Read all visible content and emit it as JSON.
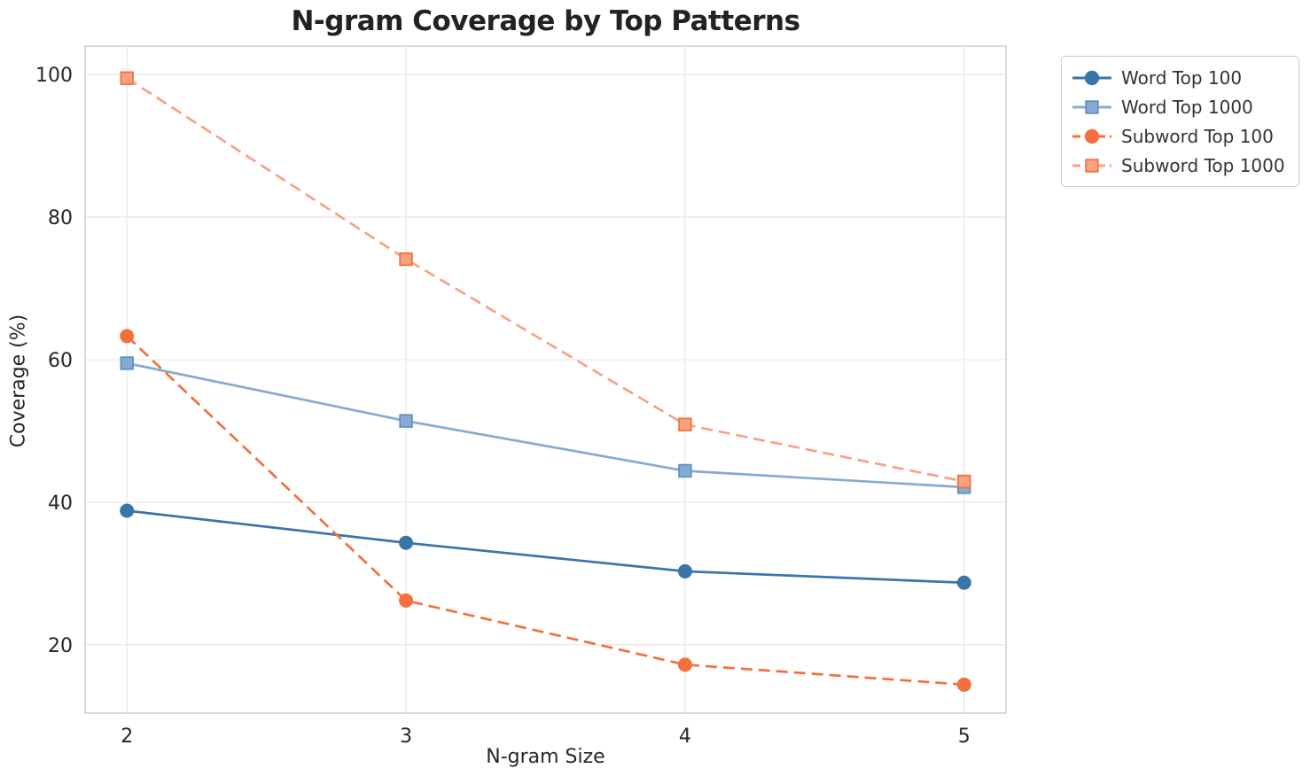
{
  "title": "N-gram Coverage by Top Patterns",
  "chart_data": {
    "type": "line",
    "title": "N-gram Coverage by Top Patterns",
    "xlabel": "N-gram Size",
    "ylabel": "Coverage (%)",
    "x": [
      2,
      3,
      4,
      5
    ],
    "xticks": [
      2,
      3,
      4,
      5
    ],
    "yticks": [
      20,
      40,
      60,
      80,
      100
    ],
    "xlim": [
      1.85,
      5.15
    ],
    "ylim": [
      10.4,
      104.0
    ],
    "grid": true,
    "legend_position": "outside-top-right",
    "series": [
      {
        "name": "Word Top 100",
        "values": [
          38.8,
          34.3,
          30.3,
          28.7
        ],
        "color": "#3A75A9",
        "edge": "#3A75A9",
        "marker": "circle",
        "dash": "solid"
      },
      {
        "name": "Word Top 1000",
        "values": [
          59.5,
          51.4,
          44.4,
          42.1
        ],
        "color": "#85ABD2",
        "edge": "#5E91C2",
        "marker": "square",
        "dash": "solid"
      },
      {
        "name": "Subword Top 100",
        "values": [
          63.3,
          26.2,
          17.2,
          14.4
        ],
        "color": "#F56F3D",
        "edge": "#F56F3D",
        "marker": "circle",
        "dash": "dashed"
      },
      {
        "name": "Subword Top 1000",
        "values": [
          99.5,
          74.1,
          50.9,
          42.9
        ],
        "color": "#F9A183",
        "edge": "#F4713B",
        "marker": "square",
        "dash": "dashed"
      }
    ],
    "colors": {
      "grid": "#E9E9E9",
      "spine": "#CBCBCB",
      "text": "#262626",
      "title": "#222222"
    }
  }
}
